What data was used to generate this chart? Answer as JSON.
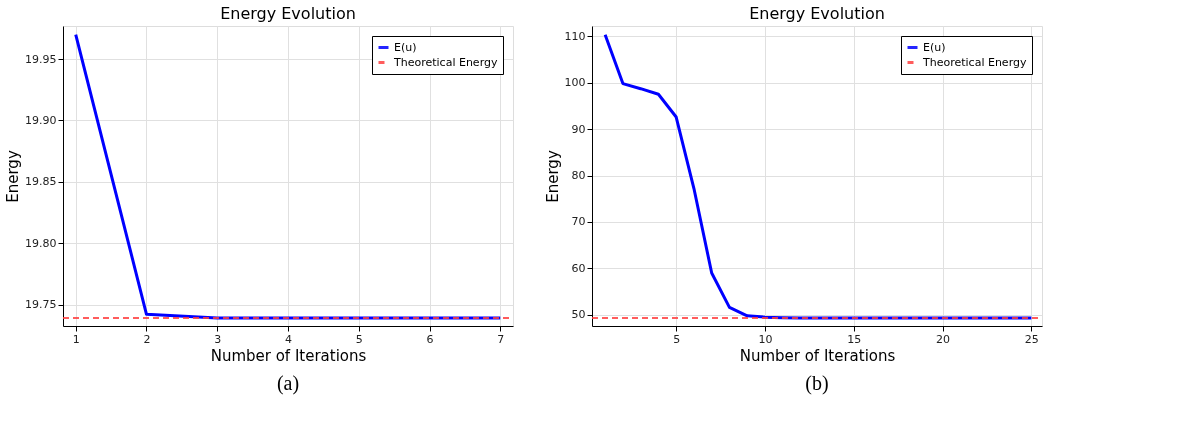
{
  "chart_data": [
    {
      "type": "line",
      "title": "Energy Evolution",
      "xlabel": "Number of Iterations",
      "ylabel": "Energy",
      "x": [
        1,
        2,
        3,
        4,
        5,
        6,
        7
      ],
      "series": [
        {
          "name": "E(u)",
          "color": "#0000ff",
          "values": [
            19.97,
            19.742,
            19.739,
            19.739,
            19.739,
            19.739,
            19.739
          ]
        }
      ],
      "ref_lines": [
        {
          "axis": "y",
          "value": 19.739,
          "label": "Theoretical Energy",
          "color": "#ff4040",
          "line_style": "dashed"
        }
      ],
      "xlim": [
        0.82,
        7.18
      ],
      "xticks": [
        1,
        2,
        3,
        4,
        5,
        6,
        7
      ],
      "ylim": [
        19.7325,
        19.977
      ],
      "yticks": [
        19.75,
        {
          "value": 19.8,
          "label": "19.80"
        },
        19.85,
        {
          "value": 19.9,
          "label": "19.90"
        },
        19.95
      ],
      "grid": true,
      "legend": "top right",
      "line_style": "solid",
      "marker": "none",
      "annotations": [
        "(a)"
      ]
    },
    {
      "type": "line",
      "title": "Energy Evolution",
      "xlabel": "Number of Iterations",
      "ylabel": "Energy",
      "x": [
        1,
        2,
        3,
        4,
        5,
        6,
        7,
        8,
        9,
        10,
        11,
        12,
        13,
        14,
        15,
        16,
        17,
        18,
        19,
        20,
        21,
        22,
        23,
        24,
        25
      ],
      "series": [
        {
          "name": "E(u)",
          "color": "#0000ff",
          "values": [
            110.3,
            99.8,
            98.7,
            97.5,
            92.6,
            77.2,
            59.0,
            51.6,
            49.8,
            49.5,
            49.4,
            49.3,
            49.3,
            49.3,
            49.3,
            49.3,
            49.3,
            49.3,
            49.3,
            49.3,
            49.3,
            49.3,
            49.3,
            49.3,
            49.3
          ]
        }
      ],
      "ref_lines": [
        {
          "axis": "y",
          "value": 49.3,
          "label": "Theoretical Energy",
          "color": "#ff4040",
          "line_style": "dashed"
        }
      ],
      "xlim": [
        0.26,
        25.6
      ],
      "xticks": [
        5,
        10,
        15,
        20,
        25
      ],
      "ylim": [
        47.6,
        112.2
      ],
      "yticks": [
        50,
        60,
        70,
        80,
        90,
        100,
        110
      ],
      "grid": true,
      "legend": "top right",
      "line_style": "solid",
      "marker": "none",
      "annotations": [
        "(b)"
      ]
    }
  ]
}
